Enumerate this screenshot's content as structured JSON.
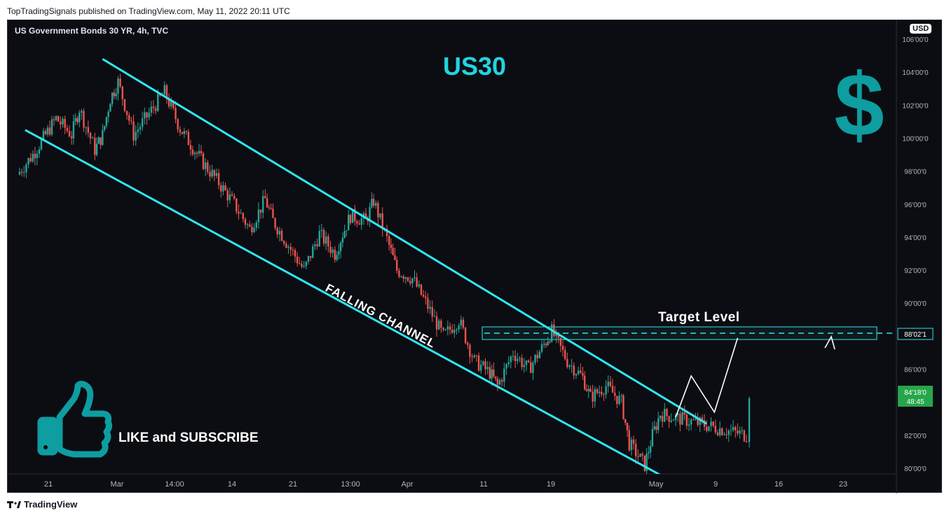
{
  "publisher_line": "TopTradingSignals published on TradingView.com, May 11, 2022 20:11 UTC",
  "symbol_title": "US Government Bonds 30 YR, 4h, TVC",
  "currency": "USD",
  "headline": "US30",
  "dollar_sign": "$",
  "pattern_label": "FALLING CHANNEL",
  "target_label": "Target Level",
  "cta_label": "LIKE and SUBSCRIBE",
  "footer_brand": "TradingView",
  "colors": {
    "background": "#0c0d12",
    "up_candle": "#26a69a",
    "down_candle": "#ef5350",
    "channel": "#2ee6f0",
    "teal_icon": "#0e9da0",
    "price_badge": "#26a64a"
  },
  "icons": [
    "thumbs-up-icon",
    "dollar-icon",
    "tradingview-logo-icon"
  ],
  "price_axis": {
    "ticks": [
      "106'00'0",
      "104'00'0",
      "102'00'0",
      "100'00'0",
      "98'00'0",
      "96'00'0",
      "94'00'0",
      "92'00'0",
      "90'00'0",
      "88'00'0",
      "86'00'0",
      "84'00'0",
      "82'00'0",
      "80'00'0"
    ],
    "target_badge": "88'02'1",
    "last_price": "84'18'0",
    "countdown": "48:45"
  },
  "time_axis": {
    "ticks": [
      "21",
      "Mar",
      "14:00",
      "14",
      "21",
      "13:00",
      "Apr",
      "11",
      "19",
      "May",
      "9",
      "16",
      "23"
    ]
  },
  "chart_data": {
    "type": "candlestick",
    "title": "US Government Bonds 30 YR, 4h, TVC",
    "ylim": [
      79.5,
      106
    ],
    "target_level": 88.07,
    "last_price": 84.56,
    "channel": {
      "upper": [
        {
          "t": "Feb 28",
          "y": 104.8
        },
        {
          "t": "May 17",
          "y": 82.7
        }
      ],
      "lower": [
        {
          "t": "Feb 18",
          "y": 100.5
        },
        {
          "t": "May 11",
          "y": 79.6
        }
      ]
    },
    "path": [
      {
        "t": "Feb 17",
        "y": 97.8
      },
      {
        "t": "Feb 19",
        "y": 99.0
      },
      {
        "t": "Feb 22",
        "y": 101.2
      },
      {
        "t": "Feb 24",
        "y": 100.2
      },
      {
        "t": "Feb 25",
        "y": 101.8
      },
      {
        "t": "Feb 27",
        "y": 99.3
      },
      {
        "t": "Feb 28",
        "y": 100.2
      },
      {
        "t": "Mar 01",
        "y": 102.4
      },
      {
        "t": "Mar 02",
        "y": 103.4
      },
      {
        "t": "Mar 04",
        "y": 100.2
      },
      {
        "t": "Mar 06",
        "y": 101.5
      },
      {
        "t": "Mar 08",
        "y": 102.8
      },
      {
        "t": "Mar 10",
        "y": 100.6
      },
      {
        "t": "Mar 13",
        "y": 98.5
      },
      {
        "t": "Mar 15",
        "y": 97.3
      },
      {
        "t": "Mar 17",
        "y": 96.0
      },
      {
        "t": "Mar 19",
        "y": 94.5
      },
      {
        "t": "Mar 21",
        "y": 96.3
      },
      {
        "t": "Mar 22",
        "y": 95.0
      },
      {
        "t": "Mar 24",
        "y": 93.5
      },
      {
        "t": "Mar 26",
        "y": 92.0
      },
      {
        "t": "Mar 28",
        "y": 94.2
      },
      {
        "t": "Mar 30",
        "y": 93.0
      },
      {
        "t": "Mar 31",
        "y": 94.2
      },
      {
        "t": "Apr 01",
        "y": 95.3
      },
      {
        "t": "Apr 03",
        "y": 95.0
      },
      {
        "t": "Apr 04",
        "y": 96.2
      },
      {
        "t": "Apr 06",
        "y": 93.5
      },
      {
        "t": "Apr 07",
        "y": 92.0
      },
      {
        "t": "Apr 09",
        "y": 91.5
      },
      {
        "t": "Apr 11",
        "y": 89.8
      },
      {
        "t": "Apr 13",
        "y": 88.0
      },
      {
        "t": "Apr 15",
        "y": 89.0
      },
      {
        "t": "Apr 17",
        "y": 86.5
      },
      {
        "t": "Apr 19",
        "y": 85.8
      },
      {
        "t": "Apr 20",
        "y": 85.0
      },
      {
        "t": "Apr 22",
        "y": 87.0
      },
      {
        "t": "Apr 24",
        "y": 86.0
      },
      {
        "t": "Apr 26",
        "y": 87.5
      },
      {
        "t": "Apr 27",
        "y": 88.3
      },
      {
        "t": "Apr 29",
        "y": 86.5
      },
      {
        "t": "May 01",
        "y": 85.5
      },
      {
        "t": "May 02",
        "y": 84.3
      },
      {
        "t": "May 04",
        "y": 85.0
      },
      {
        "t": "May 06",
        "y": 84.0
      },
      {
        "t": "May 07",
        "y": 81.5
      },
      {
        "t": "May 09",
        "y": 80.2
      },
      {
        "t": "May 10",
        "y": 82.0
      },
      {
        "t": "May 11",
        "y": 83.3
      },
      {
        "t": "May 11",
        "y": 82.0
      },
      {
        "t": "May 11",
        "y": 84.6
      }
    ],
    "projection": [
      {
        "t": "May 13",
        "y": 83.1
      },
      {
        "t": "May 15",
        "y": 85.6
      },
      {
        "t": "May 18",
        "y": 83.4
      },
      {
        "t": "May 21",
        "y": 87.9
      }
    ]
  }
}
